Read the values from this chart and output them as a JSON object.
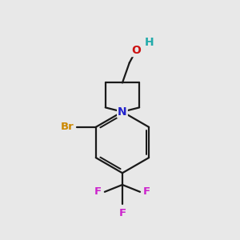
{
  "bg_color": "#e8e8e8",
  "bond_color": "#1a1a1a",
  "N_color": "#2222cc",
  "O_color": "#cc1111",
  "H_color": "#22aaaa",
  "Br_color": "#cc8800",
  "F_color": "#cc22cc",
  "bond_lw": 1.6,
  "fig_size": [
    3.0,
    3.0
  ],
  "dpi": 100,
  "xlim": [
    0,
    10
  ],
  "ylim": [
    0,
    10
  ]
}
